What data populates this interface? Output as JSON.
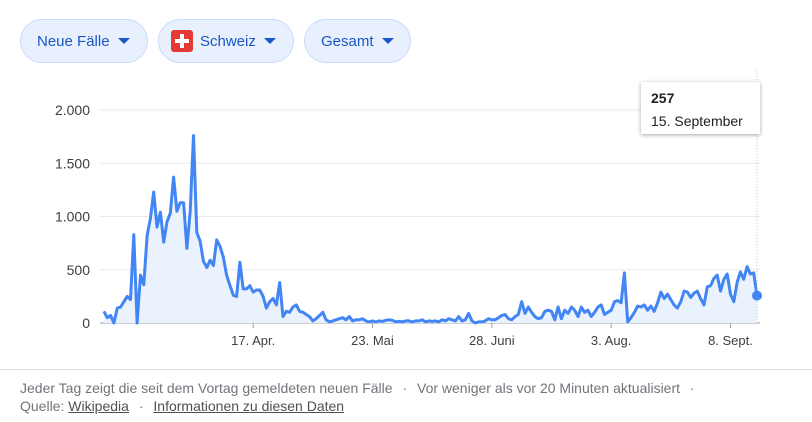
{
  "filters": {
    "metric": "Neue Fälle",
    "region": "Schweiz",
    "period": "Gesamt"
  },
  "tooltip": {
    "value": "257",
    "date": "15. September"
  },
  "chart_data": {
    "type": "area",
    "title": "",
    "xlabel": "",
    "ylabel": "",
    "ylim": [
      0,
      2000
    ],
    "y_ticks": [
      0,
      500,
      1000,
      1500,
      2000
    ],
    "y_tick_labels": [
      "0",
      "500",
      "1.000",
      "1.500",
      "2.000"
    ],
    "x_tick_labels": [
      "17. Apr.",
      "23. Mai",
      "28. Juni",
      "3. Aug.",
      "8. Sept."
    ],
    "x_tick_index": [
      45,
      81,
      117,
      153,
      189
    ],
    "grid": true,
    "series": [
      {
        "color": "#4285f4",
        "fill": "#eaf2fd",
        "values": [
          110,
          50,
          70,
          0,
          140,
          150,
          200,
          250,
          220,
          830,
          0,
          450,
          360,
          820,
          980,
          1230,
          900,
          1040,
          760,
          950,
          1030,
          1370,
          1050,
          1130,
          1130,
          700,
          1050,
          1760,
          850,
          770,
          580,
          520,
          590,
          540,
          780,
          720,
          620,
          450,
          350,
          260,
          250,
          570,
          320,
          320,
          350,
          290,
          310,
          310,
          250,
          140,
          200,
          230,
          170,
          380,
          60,
          110,
          100,
          150,
          170,
          110,
          100,
          80,
          60,
          20,
          40,
          70,
          100,
          30,
          10,
          20,
          30,
          40,
          50,
          30,
          60,
          20,
          30,
          30,
          40,
          20,
          10,
          20,
          10,
          20,
          15,
          25,
          30,
          25,
          10,
          15,
          10,
          20,
          20,
          10,
          20,
          20,
          30,
          10,
          20,
          15,
          20,
          10,
          30,
          20,
          40,
          30,
          20,
          60,
          20,
          30,
          90,
          20,
          0,
          10,
          10,
          20,
          40,
          30,
          30,
          50,
          70,
          80,
          40,
          30,
          60,
          80,
          200,
          90,
          150,
          100,
          60,
          40,
          50,
          110,
          120,
          110,
          30,
          150,
          40,
          120,
          90,
          150,
          120,
          60,
          150,
          100,
          120,
          60,
          100,
          150,
          170,
          80,
          100,
          120,
          200,
          210,
          190,
          470,
          10,
          50,
          100,
          160,
          150,
          170,
          120,
          160,
          110,
          190,
          290,
          230,
          270,
          220,
          170,
          140,
          200,
          300,
          290,
          240,
          280,
          300,
          230,
          170,
          340,
          350,
          420,
          450,
          300,
          410,
          460,
          270,
          200,
          380,
          480,
          410,
          530,
          460,
          470,
          257
        ]
      }
    ]
  },
  "footer": {
    "note": "Jeder Tag zeigt die seit dem Vortag gemeldeten neuen Fälle",
    "sep1": "·",
    "updated": "Vor weniger als vor 20 Minuten aktualisiert",
    "sep2": "·",
    "source_label": "Quelle:",
    "source_link": "Wikipedia",
    "sep3": "·",
    "info_link": "Informationen zu diesen Daten"
  }
}
